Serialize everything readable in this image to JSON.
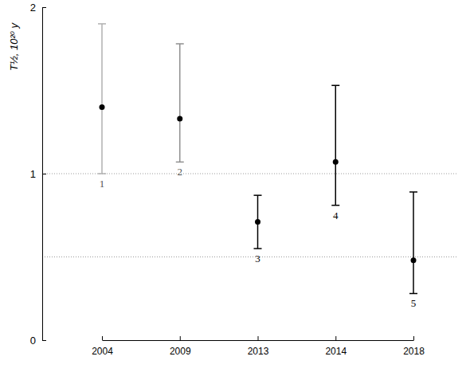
{
  "chart_data": {
    "type": "scatter",
    "y_label": "T½, 10²⁰ y",
    "categories": [
      "2004",
      "2009",
      "2013",
      "2014",
      "2018"
    ],
    "values": [
      1.4,
      1.33,
      0.71,
      1.07,
      0.48
    ],
    "errors_plus": [
      0.5,
      0.45,
      0.16,
      0.46,
      0.41
    ],
    "errors_minus": [
      0.4,
      0.26,
      0.16,
      0.26,
      0.2
    ],
    "point_labels": [
      "1",
      "2",
      "3",
      "4",
      "5"
    ],
    "colors": [
      "#b0b0b0",
      "#909090",
      "#000000",
      "#000000",
      "#000000"
    ],
    "reference_lines": [
      0.5,
      1
    ],
    "ylim": [
      0,
      2
    ],
    "yticks": [
      0,
      1,
      2
    ],
    "marker": "circle",
    "grid": true
  }
}
